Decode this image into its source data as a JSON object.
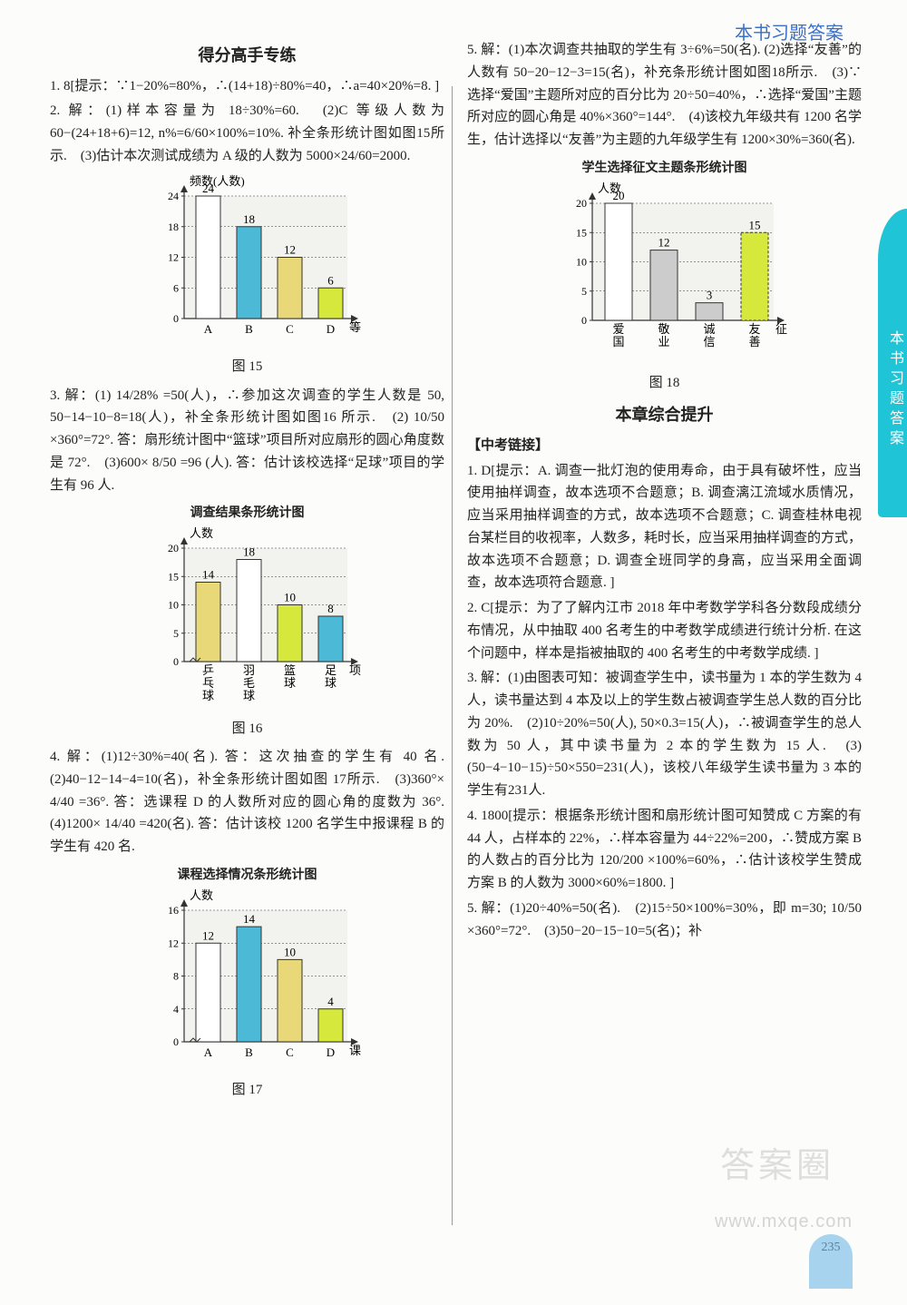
{
  "header": {
    "title": "本书习题答案"
  },
  "side_tab": "本书习题答案",
  "footer_page": "235",
  "watermark": "答案圈",
  "watermark_url": "www.mxqe.com",
  "left": {
    "section_title": "得分高手专练",
    "q1": "1. 8[提示：∵1−20%=80%，∴(14+18)÷80%=40，∴a=40×20%=8. ]",
    "q2": "2. 解：(1)样本容量为 18÷30%=60.　(2)C 等级人数为 60−(24+18+6)=12, n%=6/60×100%=10%. 补全条形统计图如图15所示.　(3)估计本次测试成绩为 A 级的人数为 5000×24/60=2000.",
    "q3": "3. 解：(1) 14/28% =50(人)，∴参加这次调查的学生人数是 50, 50−14−10−8=18(人)，补全条形统计图如图16 所示.　(2) 10/50 ×360°=72°. 答：扇形统计图中“篮球”项目所对应扇形的圆心角度数是 72°.　(3)600× 8/50 =96 (人). 答：估计该校选择“足球”项目的学生有 96 人.",
    "q4": "4. 解：(1)12÷30%=40(名). 答：这次抽查的学生有 40 名.　(2)40−12−14−4=10(名)，补全条形统计图如图 17所示.　(3)360°× 4/40 =36°. 答：选课程 D 的人数所对应的圆心角的度数为 36°.　(4)1200× 14/40 =420(名). 答：估计该校 1200 名学生中报课程 B 的学生有 420 名.",
    "chart15": {
      "type": "bar",
      "title": "",
      "y_label": "频数(人数)",
      "x_label": "等级",
      "categories": [
        "A",
        "B",
        "C",
        "D"
      ],
      "values": [
        24,
        18,
        12,
        6
      ],
      "bar_colors": [
        "#ffffff",
        "#4cb9d6",
        "#e8d878",
        "#d6e83c"
      ],
      "bar_border": "#333333",
      "ylim": [
        0,
        24
      ],
      "ytick_step": 6,
      "background": "#f2f2ee",
      "caption": "图 15"
    },
    "chart16": {
      "type": "bar",
      "title": "调查结果条形统计图",
      "y_label": "人数",
      "x_label": "项目",
      "categories": [
        "乒乓球",
        "羽毛球",
        "篮球",
        "足球"
      ],
      "values": [
        14,
        18,
        10,
        8
      ],
      "bar_colors": [
        "#e8d878",
        "#ffffff",
        "#d6e83c",
        "#4cb9d6"
      ],
      "bar_border": "#333333",
      "ylim": [
        0,
        20
      ],
      "ytick_step": 5,
      "background": "#f2f2ee",
      "caption": "图 16"
    },
    "chart17": {
      "type": "bar",
      "title": "课程选择情况条形统计图",
      "y_label": "人数",
      "x_label": "课程",
      "categories": [
        "A",
        "B",
        "C",
        "D"
      ],
      "values": [
        12,
        14,
        10,
        4
      ],
      "bar_colors": [
        "#ffffff",
        "#4cb9d6",
        "#e8d878",
        "#d6e83c"
      ],
      "bar_border": "#333333",
      "ylim": [
        0,
        16
      ],
      "ytick_step": 4,
      "background": "#f2f2ee",
      "caption": "图 17"
    }
  },
  "right": {
    "q5": "5. 解：(1)本次调查共抽取的学生有 3÷6%=50(名). (2)选择“友善”的人数有 50−20−12−3=15(名)，补充条形统计图如图18所示.　(3)∵选择“爱国”主题所对应的百分比为 20÷50=40%，∴选择“爱国”主题所对应的圆心角是 40%×360°=144°.　(4)该校九年级共有 1200 名学生，估计选择以“友善”为主题的九年级学生有 1200×30%=360(名).",
    "chart18": {
      "type": "bar",
      "title": "学生选择征文主题条形统计图",
      "y_label": "人数",
      "x_label": "征文主题",
      "categories": [
        "爱国",
        "敬业",
        "诚信",
        "友善"
      ],
      "values": [
        20,
        12,
        3,
        15
      ],
      "bar_colors": [
        "#ffffff",
        "#cccccc",
        "#cccccc",
        "#d6e83c"
      ],
      "bar_border": "#333333",
      "dashed_index": 3,
      "ylim": [
        0,
        20
      ],
      "ytick_step": 5,
      "background": "#f2f2ee",
      "caption": "图 18"
    },
    "section_title": "本章综合提升",
    "sub_heading": "【中考链接】",
    "c1": "1. D[提示：A. 调查一批灯泡的使用寿命，由于具有破坏性，应当使用抽样调查，故本选项不合题意；B. 调查漓江流域水质情况，应当采用抽样调查的方式，故本选项不合题意；C. 调查桂林电视台某栏目的收视率，人数多，耗时长，应当采用抽样调查的方式，故本选项不合题意；D. 调查全班同学的身高，应当采用全面调查，故本选项符合题意. ]",
    "c2": "2. C[提示：为了了解内江市 2018 年中考数学学科各分数段成绩分布情况，从中抽取 400 名考生的中考数学成绩进行统计分析. 在这个问题中，样本是指被抽取的 400 名考生的中考数学成绩. ]",
    "c3": "3. 解：(1)由图表可知：被调查学生中，读书量为 1 本的学生数为 4 人，读书量达到 4 本及以上的学生数占被调查学生总人数的百分比为 20%.　(2)10÷20%=50(人), 50×0.3=15(人)，∴被调查学生的总人数为 50 人，其中读书量为 2 本的学生数为 15 人.　(3)(50−4−10−15)÷50×550=231(人)，该校八年级学生读书量为 3 本的学生有231人.",
    "c4": "4. 1800[提示：根据条形统计图和扇形统计图可知赞成 C 方案的有 44 人，占样本的 22%，∴样本容量为 44÷22%=200，∴赞成方案 B 的人数占的百分比为 120/200 ×100%=60%，∴估计该校学生赞成方案 B 的人数为 3000×60%=1800. ]",
    "c5": "5. 解：(1)20÷40%=50(名).　(2)15÷50×100%=30%，即 m=30; 10/50 ×360°=72°.　(3)50−20−15−10=5(名)；补"
  }
}
